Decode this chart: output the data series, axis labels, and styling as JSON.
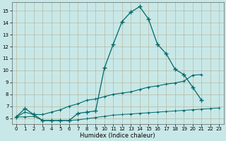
{
  "xlabel": "Humidex (Indice chaleur)",
  "x": [
    0,
    1,
    2,
    3,
    4,
    5,
    6,
    7,
    8,
    9,
    10,
    11,
    12,
    13,
    14,
    15,
    16,
    17,
    18,
    19,
    20,
    21,
    22,
    23
  ],
  "y_main": [
    6.1,
    6.8,
    6.3,
    5.8,
    5.8,
    5.8,
    5.8,
    6.4,
    6.5,
    6.6,
    10.2,
    12.2,
    14.1,
    14.9,
    15.35,
    14.3,
    12.2,
    11.4,
    10.1,
    9.65,
    8.6,
    7.5,
    null,
    null
  ],
  "y_mid": [
    6.1,
    6.5,
    6.3,
    6.3,
    6.5,
    6.7,
    7.0,
    7.2,
    7.5,
    7.6,
    7.8,
    8.0,
    8.1,
    8.2,
    8.4,
    8.6,
    8.7,
    8.85,
    8.95,
    9.1,
    9.6,
    9.65,
    null,
    null
  ],
  "y_low": [
    6.1,
    6.1,
    6.15,
    5.8,
    5.8,
    5.8,
    5.8,
    5.85,
    5.95,
    6.05,
    6.15,
    6.25,
    6.3,
    6.35,
    6.4,
    6.45,
    6.5,
    6.55,
    6.6,
    6.65,
    6.7,
    6.75,
    6.8,
    6.85
  ],
  "bg_color": "#c8e8e8",
  "grid_color": "#b8b8a0",
  "line_color": "#006868",
  "xlim": [
    -0.5,
    23.5
  ],
  "ylim": [
    5.5,
    15.7
  ],
  "yticks": [
    6,
    7,
    8,
    9,
    10,
    11,
    12,
    13,
    14,
    15
  ],
  "xticks": [
    0,
    1,
    2,
    3,
    4,
    5,
    6,
    7,
    8,
    9,
    10,
    11,
    12,
    13,
    14,
    15,
    16,
    17,
    18,
    19,
    20,
    21,
    22,
    23
  ],
  "tick_fontsize": 5.0,
  "xlabel_fontsize": 6.0
}
